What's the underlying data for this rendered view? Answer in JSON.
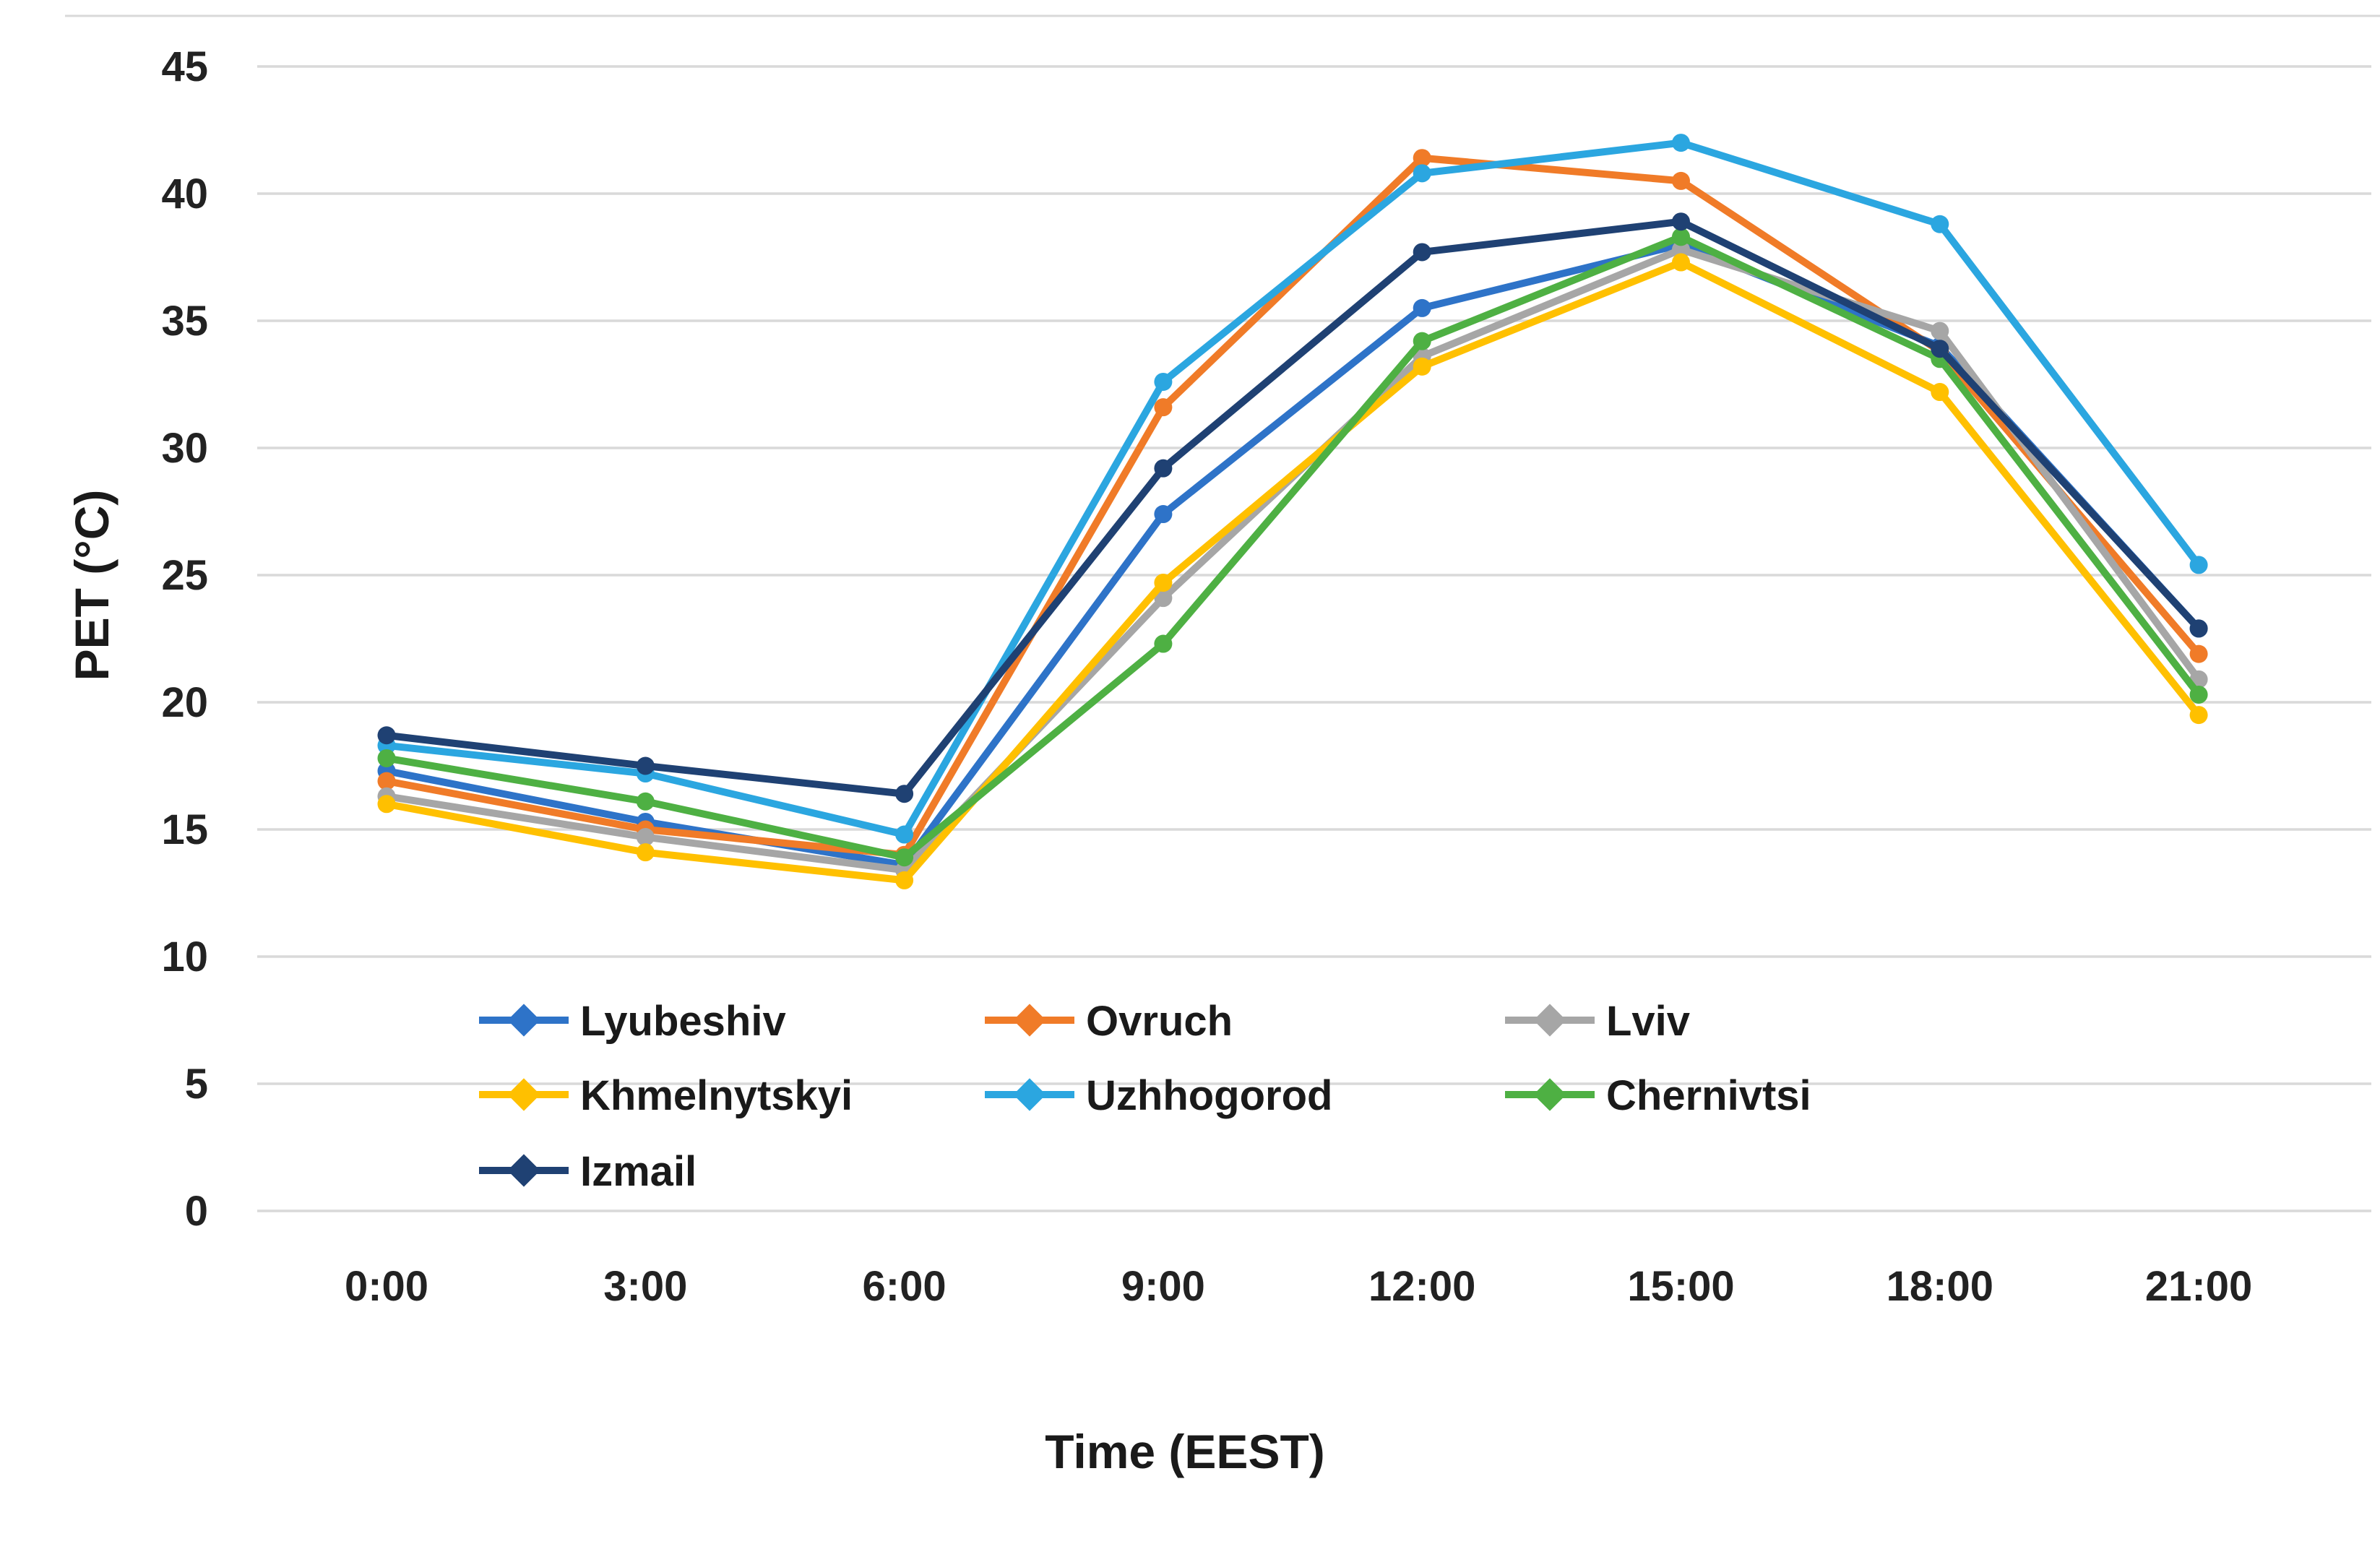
{
  "chart_data": {
    "type": "line",
    "title": "",
    "xlabel": "Time (EEST)",
    "ylabel": "PET (°C)",
    "categories": [
      "0:00",
      "3:00",
      "6:00",
      "9:00",
      "12:00",
      "15:00",
      "18:00",
      "21:00"
    ],
    "ylim": [
      0,
      45
    ],
    "ytick_step": 5,
    "grid": true,
    "legend_position": "inside-bottom-left",
    "colors": {
      "Lyubeshiv": "#2E73C8",
      "Ovruch": "#F07B28",
      "Lviv": "#A6A6A6",
      "Khmelnytskyi": "#FFC000",
      "Uzhhogorod": "#2BA6E0",
      "Chernivtsi": "#4EB043",
      "Izmail": "#1F4173"
    },
    "series": [
      {
        "name": "Lyubeshiv",
        "color": "#2E73C8",
        "values": [
          17.3,
          15.3,
          13.6,
          27.4,
          35.5,
          38.0,
          34.0,
          22.9
        ]
      },
      {
        "name": "Ovruch",
        "color": "#F07B28",
        "values": [
          16.9,
          15.0,
          14.0,
          31.6,
          41.4,
          40.5,
          33.8,
          21.9
        ]
      },
      {
        "name": "Lviv",
        "color": "#A6A6A6",
        "values": [
          16.3,
          14.7,
          13.4,
          24.1,
          33.6,
          37.8,
          34.6,
          20.9
        ]
      },
      {
        "name": "Khmelnytskyi",
        "color": "#FFC000",
        "values": [
          16.0,
          14.1,
          13.0,
          24.7,
          33.2,
          37.3,
          32.2,
          19.5
        ]
      },
      {
        "name": "Uzhhogorod",
        "color": "#2BA6E0",
        "values": [
          18.3,
          17.2,
          14.8,
          32.6,
          40.8,
          42.0,
          38.8,
          25.4
        ]
      },
      {
        "name": "Chernivtsi",
        "color": "#4EB043",
        "values": [
          17.8,
          16.1,
          13.9,
          22.3,
          34.2,
          38.3,
          33.5,
          20.3
        ]
      },
      {
        "name": "Izmail",
        "color": "#1F4173",
        "values": [
          18.7,
          17.5,
          16.4,
          29.2,
          37.7,
          38.9,
          33.9,
          22.9
        ]
      }
    ],
    "legend_rows": [
      [
        "Lyubeshiv",
        "Ovruch",
        "Lviv"
      ],
      [
        "Khmelnytskyi",
        "Uzhhogorod",
        "Chernivtsi"
      ],
      [
        "Izmail"
      ]
    ],
    "gridline_color": "#D9D9D9",
    "text_color": "#222222"
  }
}
